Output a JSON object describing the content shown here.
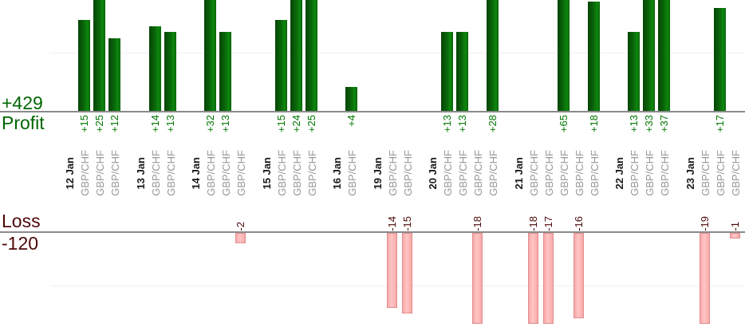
{
  "chart_data": {
    "type": "bar",
    "orientation": "vertical",
    "profit_total": "+429",
    "profit_label": "Profit",
    "loss_label": "Loss",
    "loss_total": "-120",
    "gridline_values": {
      "profit_section": 10,
      "loss_section": -10
    },
    "colors": {
      "profit_bar_edge": "#074407",
      "profit_bar_mid": "#096409",
      "profit_bar_light": "#0d870d",
      "profit_bar_right": "#0a620a",
      "profit_value_text": "#007700",
      "profit_axis_text": "#006600",
      "loss_bar_fill": "#f9a8a8",
      "loss_bar_highlight": "#ffc6c6",
      "loss_bar_border": "#e08e8e",
      "loss_text": "#4c0909",
      "date_text": "#1a1a1a",
      "symbol_text": "#979797",
      "axis_line": "#8a8a8a",
      "gridline": "#efefef"
    },
    "groups": [
      {
        "date": "12 Jan",
        "trades": [
          {
            "symbol": "GBP/CHF",
            "value": 15,
            "label": "+15"
          },
          {
            "symbol": "GBP/CHF",
            "value": 25,
            "label": "+25"
          },
          {
            "symbol": "GBP/CHF",
            "value": 12,
            "label": "+12"
          }
        ]
      },
      {
        "date": "13 Jan",
        "trades": [
          {
            "symbol": "GBP/CHF",
            "value": 14,
            "label": "+14"
          },
          {
            "symbol": "GBP/CHF",
            "value": 13,
            "label": "+13"
          }
        ]
      },
      {
        "date": "14 Jan",
        "trades": [
          {
            "symbol": "GBP/CHF",
            "value": 32,
            "label": "+32"
          },
          {
            "symbol": "GBP/CHF",
            "value": 13,
            "label": "+13"
          },
          {
            "symbol": "GBP/CHF",
            "value": -2,
            "label": "-2"
          }
        ]
      },
      {
        "date": "15 Jan",
        "trades": [
          {
            "symbol": "GBP/CHF",
            "value": 15,
            "label": "+15"
          },
          {
            "symbol": "GBP/CHF",
            "value": 24,
            "label": "+24"
          },
          {
            "symbol": "GBP/CHF",
            "value": 25,
            "label": "+25"
          }
        ]
      },
      {
        "date": "16 Jan",
        "trades": [
          {
            "symbol": "GBP/CHF",
            "value": 4,
            "label": "+4"
          }
        ]
      },
      {
        "date": "19 Jan",
        "trades": [
          {
            "symbol": "GBP/CHF",
            "value": -14,
            "label": "-14"
          },
          {
            "symbol": "GBP/CHF",
            "value": -15,
            "label": "-15"
          }
        ]
      },
      {
        "date": "20 Jan",
        "trades": [
          {
            "symbol": "GBP/CHF",
            "value": 13,
            "label": "+13"
          },
          {
            "symbol": "GBP/CHF",
            "value": 13,
            "label": "+13"
          },
          {
            "symbol": "GBP/CHF",
            "value": -18,
            "label": "-18"
          },
          {
            "symbol": "GBP/CHF",
            "value": 28,
            "label": "+28"
          }
        ]
      },
      {
        "date": "21 Jan",
        "trades": [
          {
            "symbol": "GBP/CHF",
            "value": -18,
            "label": "-18"
          },
          {
            "symbol": "GBP/CHF",
            "value": -17,
            "label": "-17"
          },
          {
            "symbol": "GBP/CHF",
            "value": 65,
            "label": "+65"
          },
          {
            "symbol": "GBP/CHF",
            "value": -16,
            "label": "-16"
          },
          {
            "symbol": "GBP/CHF",
            "value": 18,
            "label": "+18"
          }
        ]
      },
      {
        "date": "22 Jan",
        "trades": [
          {
            "symbol": "GBP/CHF",
            "value": 13,
            "label": "+13"
          },
          {
            "symbol": "GBP/CHF",
            "value": 33,
            "label": "+33"
          },
          {
            "symbol": "GBP/CHF",
            "value": 37,
            "label": "+37"
          }
        ]
      },
      {
        "date": "23 Jan",
        "trades": [
          {
            "symbol": "GBP/CHF",
            "value": -19,
            "label": "-19"
          },
          {
            "symbol": "GBP/CHF",
            "value": 17,
            "label": "+17"
          },
          {
            "symbol": "GBP/CHF",
            "value": -1,
            "label": "-1"
          }
        ]
      }
    ]
  }
}
